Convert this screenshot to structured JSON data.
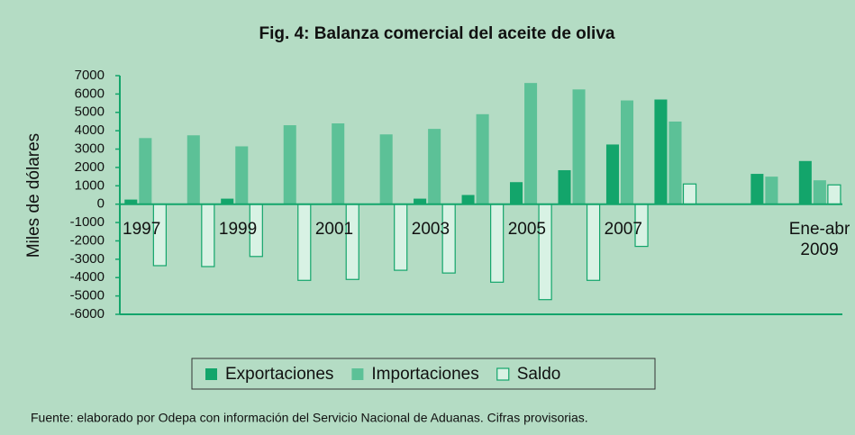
{
  "chart_data": {
    "type": "bar",
    "title": "Fig. 4: Balanza comercial del aceite de oliva",
    "ylabel": "Miles de dólares",
    "footnote": "Fuente: elaborado por Odepa con información del Servicio Nacional de Aduanas. Cifras provisorias.",
    "categories": [
      "1997",
      null,
      "1999",
      null,
      "2001",
      null,
      "2003",
      null,
      "2005",
      null,
      "2007",
      null,
      null,
      null,
      "Ene-abr 2009"
    ],
    "series": [
      {
        "name": "Exportaciones",
        "color": "#13a56b",
        "values": [
          250,
          0,
          300,
          0,
          0,
          0,
          300,
          500,
          1200,
          1850,
          3250,
          5700,
          null,
          1650,
          2350
        ]
      },
      {
        "name": "Importaciones",
        "color": "#5cc197",
        "values": [
          3600,
          3750,
          3150,
          4300,
          4400,
          3800,
          4100,
          4900,
          6600,
          6250,
          5650,
          4500,
          null,
          1500,
          1300
        ]
      },
      {
        "name": "Saldo",
        "color": "#d8f2e4",
        "edgecolor": "#13a56b",
        "values": [
          -3350,
          -3400,
          -2850,
          -4150,
          -4100,
          -3600,
          -3750,
          -4250,
          -5200,
          -4150,
          -2300,
          1100,
          null,
          null,
          1050
        ]
      }
    ],
    "ylim": [
      -6000,
      7000
    ],
    "yticks": [
      7000,
      6000,
      5000,
      4000,
      3000,
      2000,
      1000,
      0,
      -1000,
      -2000,
      -3000,
      -4000,
      -5000,
      -6000
    ],
    "title_color": "#17a268",
    "grid": false
  }
}
